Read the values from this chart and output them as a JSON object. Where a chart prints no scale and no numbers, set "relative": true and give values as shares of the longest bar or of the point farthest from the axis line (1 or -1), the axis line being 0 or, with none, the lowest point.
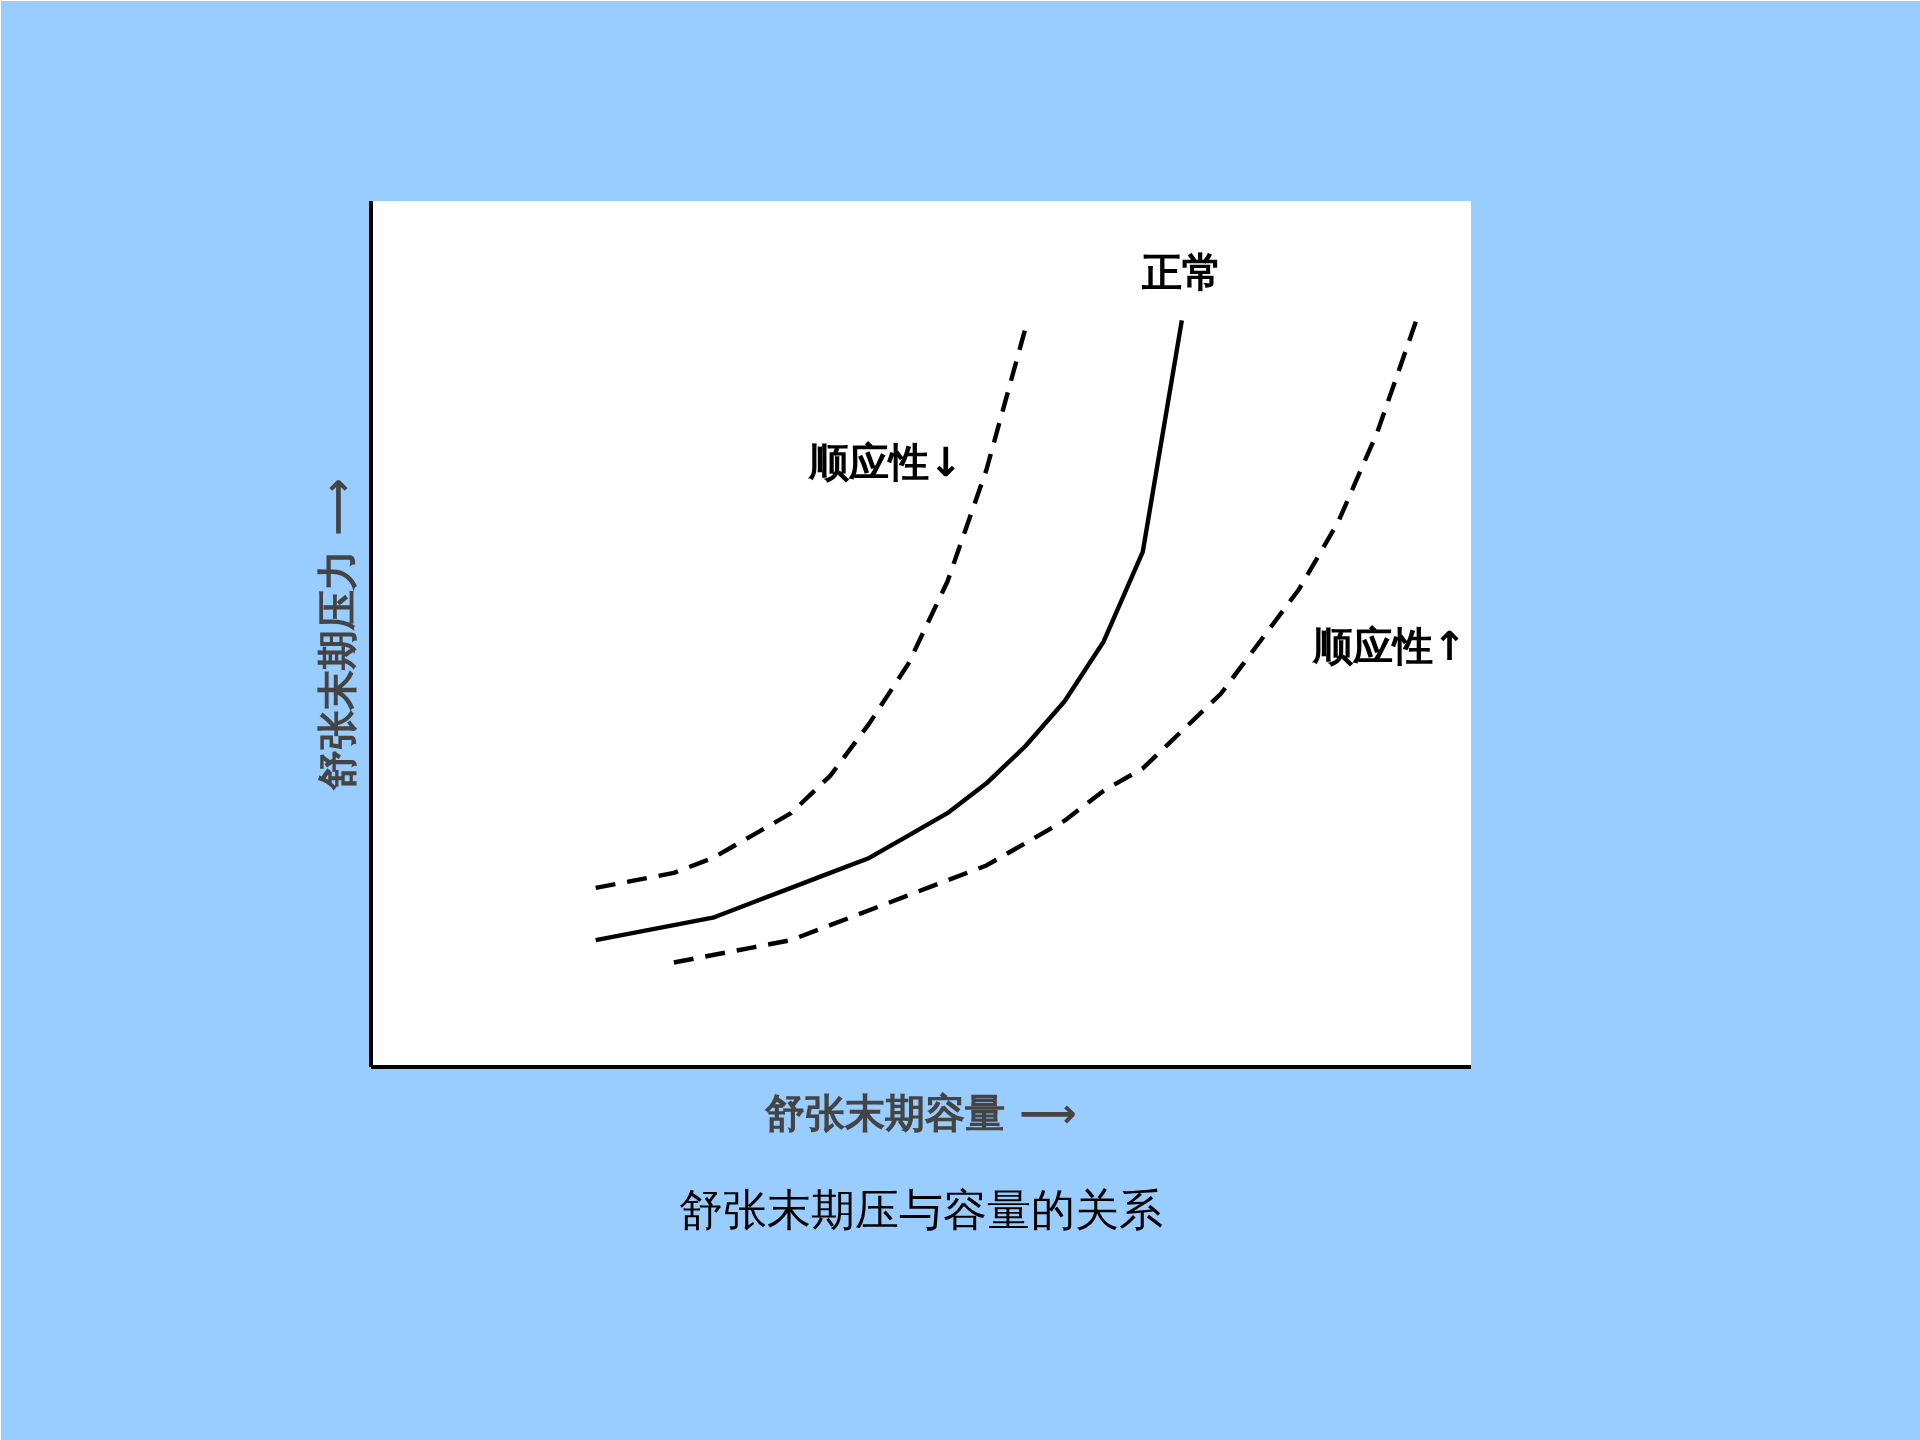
{
  "chart_data": {
    "type": "line",
    "relative": true,
    "xlabel": "舒张末期容量 ⟶",
    "ylabel": "舒张末期压力 ⟶",
    "annotations": [
      "舒张末期压与容量的关系"
    ],
    "categories": [
      null,
      null,
      null,
      null,
      null,
      null,
      null,
      null,
      null,
      null,
      null,
      null,
      null,
      null,
      null,
      null,
      null,
      null,
      null,
      null,
      null,
      null,
      null,
      null,
      null,
      null,
      null,
      null,
      null
    ],
    "series": [
      {
        "name": "顺应性↓",
        "color": "#000000",
        "line_style": "dashed",
        "values": [
          null,
          null,
          null,
          null,
          null,
          null,
          0.24,
          0.25,
          0.26,
          0.28,
          0.31,
          0.34,
          0.39,
          0.46,
          0.54,
          0.65,
          0.8,
          0.99,
          null,
          null,
          null,
          null,
          null,
          null,
          null,
          null,
          null,
          null,
          null
        ]
      },
      {
        "name": "正常",
        "color": "#000000",
        "line_style": "solid",
        "values": [
          null,
          null,
          null,
          null,
          null,
          null,
          0.17,
          0.18,
          0.19,
          0.2,
          0.22,
          0.24,
          0.26,
          0.28,
          0.31,
          0.34,
          0.38,
          0.43,
          0.49,
          0.57,
          0.69,
          1.0,
          null,
          null,
          null,
          null,
          null,
          null,
          null
        ]
      },
      {
        "name": "顺应性↑",
        "color": "#000000",
        "line_style": "dashed",
        "values": [
          null,
          null,
          null,
          null,
          null,
          null,
          null,
          null,
          0.14,
          0.15,
          0.16,
          0.17,
          0.19,
          0.21,
          0.23,
          0.25,
          0.27,
          0.3,
          0.33,
          0.37,
          0.4,
          0.45,
          0.5,
          0.57,
          0.64,
          0.73,
          0.85,
          1.0,
          null
        ]
      }
    ],
    "grid": false,
    "marker": "none"
  }
}
